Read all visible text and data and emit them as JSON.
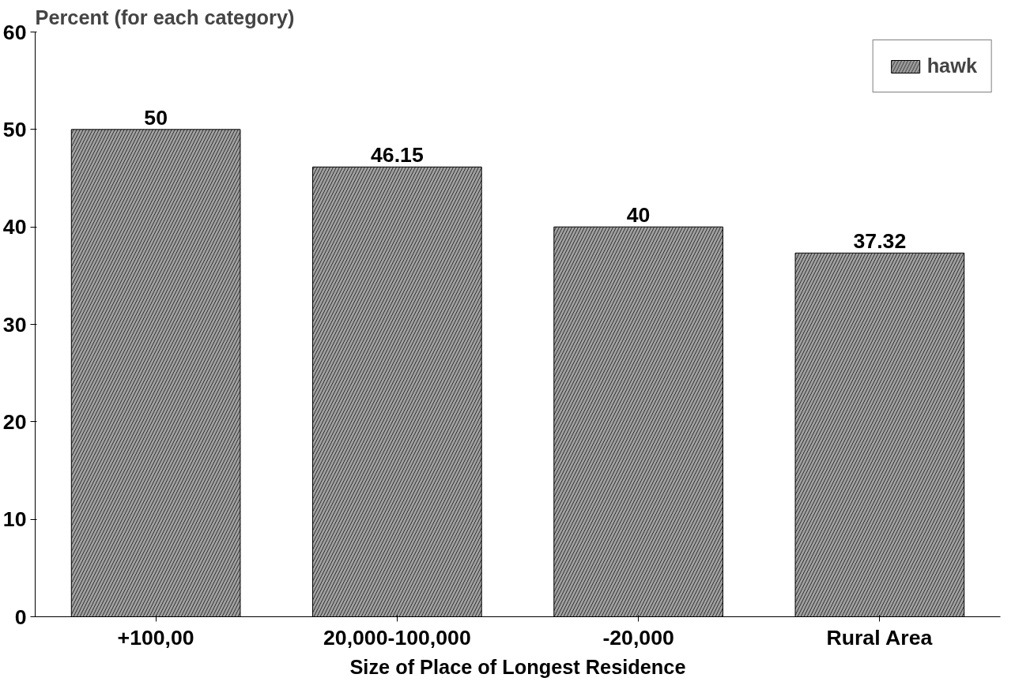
{
  "chart_data": {
    "type": "bar",
    "xlabel": "Size of Place of Longest Residence",
    "ylabel": "Percent (for each category)",
    "categories": [
      "+100,00",
      "20,000-100,000",
      "-20,000",
      "Rural Area"
    ],
    "series": [
      {
        "name": "hawk",
        "color": "#a0a0a0",
        "values": [
          50,
          46.15,
          40,
          37.32
        ]
      }
    ],
    "ylim": [
      0,
      60
    ],
    "yticks": [
      0,
      10,
      20,
      30,
      40,
      50,
      60
    ],
    "grid": false,
    "legend": "top right",
    "data_labels": true
  }
}
